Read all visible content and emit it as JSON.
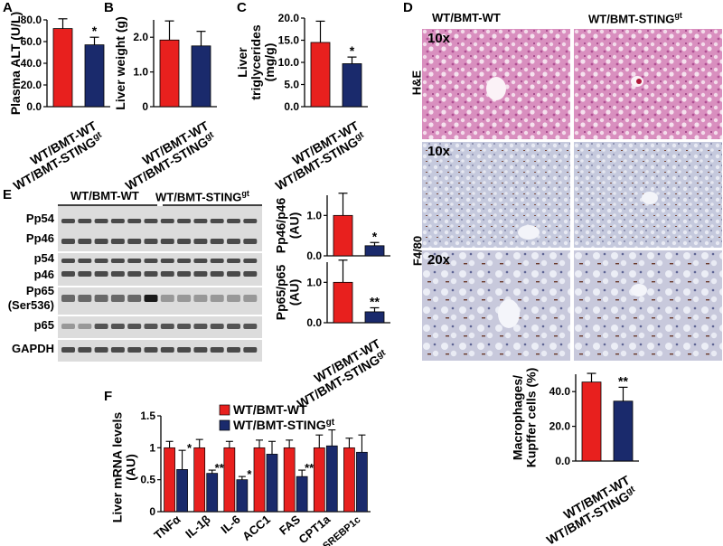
{
  "figure": {
    "panel_letters": [
      "A",
      "B",
      "C",
      "D",
      "E",
      "F"
    ],
    "group_labels": {
      "wt": "WT/BMT-WT",
      "sting_base": "WT/BMT-STING",
      "sting_sup": "gt"
    },
    "colors": {
      "wt": "#e8201e",
      "sting": "#1a2a6c",
      "error": "#000000"
    }
  },
  "panel_d": {
    "col_headers": [
      "WT/BMT-WT",
      "WT/BMT-STING"
    ],
    "col_header_sup": "gt",
    "rows": [
      {
        "stain": "H&E",
        "magnification": "10x"
      },
      {
        "stain": "F4/80",
        "magnification": "10x"
      },
      {
        "stain": "F4/80",
        "magnification": "20x"
      }
    ],
    "row_labels": [
      "H&E",
      "F4/80"
    ]
  },
  "panel_e": {
    "header_left": "WT/BMT-WT",
    "header_right": "WT/BMT-STING",
    "header_sup": "gt",
    "blot_labels": [
      "Pp54",
      "Pp46",
      "p54",
      "p46",
      "Pp65",
      "(Ser536)",
      "p65",
      "GAPDH"
    ]
  },
  "chart_data": [
    {
      "id": "A",
      "type": "bar",
      "categories": [
        "WT/BMT-WT",
        "WT/BMT-STINGgt"
      ],
      "values": [
        72,
        57
      ],
      "errors": [
        9,
        7
      ],
      "ylabel": "Plasma ALT (U/L)",
      "ylim": [
        0,
        80
      ],
      "yticks": [
        "0.0",
        "20.0",
        "40.0",
        "60.0",
        "80.0"
      ],
      "annotations": [
        "",
        "*"
      ]
    },
    {
      "id": "B",
      "type": "bar",
      "categories": [
        "WT/BMT-WT",
        "WT/BMT-STINGgt"
      ],
      "values": [
        1.92,
        1.75
      ],
      "errors": [
        0.55,
        0.42
      ],
      "ylabel": "Liver weight (g)",
      "ylim": [
        0,
        2.5
      ],
      "yticks": [
        "0",
        "1.0",
        "2.0"
      ],
      "annotations": [
        "",
        ""
      ]
    },
    {
      "id": "C",
      "type": "bar",
      "categories": [
        "WT/BMT-WT",
        "WT/BMT-STINGgt"
      ],
      "values": [
        14.5,
        9.7
      ],
      "errors": [
        4.8,
        1.5
      ],
      "ylabel": "Liver triglycerides (mg/g)",
      "ylim": [
        0,
        20
      ],
      "yticks": [
        "0.0",
        "5.0",
        "10.0",
        "15.0",
        "20.0"
      ],
      "annotations": [
        "",
        "*"
      ]
    },
    {
      "id": "E1",
      "type": "bar",
      "categories": [
        "WT/BMT-WT",
        "WT/BMT-STINGgt"
      ],
      "values": [
        1.0,
        0.25
      ],
      "errors": [
        0.55,
        0.08
      ],
      "ylabel": "Pp46/p46 (AU)",
      "ylim": [
        0,
        1.5
      ],
      "yticks": [
        "0.0",
        "1.0"
      ],
      "annotations": [
        "",
        "*"
      ]
    },
    {
      "id": "E2",
      "type": "bar",
      "categories": [
        "WT/BMT-WT",
        "WT/BMT-STINGgt"
      ],
      "values": [
        1.0,
        0.27
      ],
      "errors": [
        0.55,
        0.1
      ],
      "ylabel": "Pp65/p65 (AU)",
      "ylim": [
        0,
        1.5
      ],
      "yticks": [
        "0.0",
        "1.0"
      ],
      "annotations": [
        "",
        "**"
      ]
    },
    {
      "id": "F",
      "type": "bar",
      "categories": [
        "TNFα",
        "IL-1β",
        "IL-6",
        "ACC1",
        "FAS",
        "CPT1a",
        "SREBP1c"
      ],
      "series": [
        {
          "name": "WT/BMT-WT",
          "values": [
            1.0,
            1.0,
            1.0,
            1.0,
            1.0,
            1.0,
            1.0
          ],
          "errors": [
            0.1,
            0.13,
            0.1,
            0.12,
            0.12,
            0.2,
            0.15
          ]
        },
        {
          "name": "WT/BMT-STINGgt",
          "values": [
            0.66,
            0.6,
            0.5,
            0.9,
            0.55,
            1.03,
            0.93
          ],
          "errors": [
            0.3,
            0.05,
            0.05,
            0.2,
            0.1,
            0.25,
            0.27
          ]
        }
      ],
      "ylabel": "Liver mRNA levels (AU)",
      "ylim": [
        0,
        1.5
      ],
      "yticks": [
        "0",
        "0.5",
        "1",
        "1.5"
      ],
      "annotations": [
        "*",
        "**",
        "*",
        "",
        "**",
        "",
        ""
      ]
    },
    {
      "id": "D",
      "type": "bar",
      "categories": [
        "WT/BMT-WT",
        "WT/BMT-STINGgt"
      ],
      "values": [
        45.5,
        34.5
      ],
      "errors": [
        5,
        8
      ],
      "ylabel": "Macrophages/ Kupffer cells (%)",
      "ylim": [
        0,
        50
      ],
      "yticks": [
        "0.0",
        "20.0",
        "40.0"
      ],
      "annotations": [
        "",
        "**"
      ]
    }
  ]
}
